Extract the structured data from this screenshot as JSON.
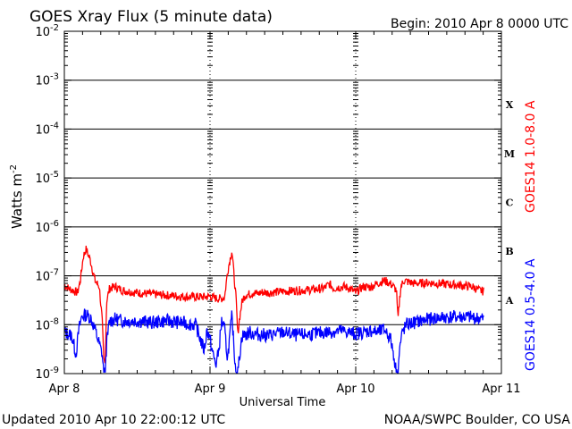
{
  "chart_data": {
    "type": "line",
    "title": "GOES Xray Flux (5 minute data)",
    "begin_label": "Begin:  2010 Apr 8 0000 UTC",
    "updated_label": "Updated 2010 Apr 10 22:00:12 UTC",
    "credit_label": "NOAA/SWPC Boulder, CO USA",
    "xlabel": "Universal Time",
    "ylabel_main": "Watts m",
    "ylabel_sup": "-2",
    "x_unit": "days since Apr 8 0000 UTC",
    "xlim": [
      0,
      3
    ],
    "x_ticks": [
      {
        "x": 0,
        "label": "Apr 8"
      },
      {
        "x": 1,
        "label": "Apr 9"
      },
      {
        "x": 2,
        "label": "Apr 10"
      },
      {
        "x": 3,
        "label": "Apr 11"
      }
    ],
    "y_scale": "log",
    "ylim": [
      1e-09,
      0.01
    ],
    "y_ticks": [
      {
        "exp": -9,
        "base": "10",
        "sup": "-9"
      },
      {
        "exp": -8,
        "base": "10",
        "sup": "-8"
      },
      {
        "exp": -7,
        "base": "10",
        "sup": "-7"
      },
      {
        "exp": -6,
        "base": "10",
        "sup": "-6"
      },
      {
        "exp": -5,
        "base": "10",
        "sup": "-5"
      },
      {
        "exp": -4,
        "base": "10",
        "sup": "-4"
      },
      {
        "exp": -3,
        "base": "10",
        "sup": "-3"
      },
      {
        "exp": -2,
        "base": "10",
        "sup": "-2"
      }
    ],
    "flare_classes": [
      {
        "label": "A",
        "exp": -8
      },
      {
        "label": "B",
        "exp": -7
      },
      {
        "label": "C",
        "exp": -6
      },
      {
        "label": "M",
        "exp": -5
      },
      {
        "label": "X",
        "exp": -4
      }
    ],
    "series": [
      {
        "name": "GOES14 1.0-8.0 A",
        "color": "#ff0000",
        "x": [
          0.0,
          0.03,
          0.06,
          0.09,
          0.11,
          0.13,
          0.15,
          0.18,
          0.21,
          0.24,
          0.26,
          0.27,
          0.28,
          0.29,
          0.31,
          0.35,
          0.4,
          0.5,
          0.6,
          0.7,
          0.8,
          0.9,
          0.97,
          1.0,
          1.03,
          1.07,
          1.1,
          1.12,
          1.15,
          1.18,
          1.19,
          1.2,
          1.22,
          1.24,
          1.27,
          1.3,
          1.33,
          1.36,
          1.4,
          1.5,
          1.6,
          1.7,
          1.78,
          1.82,
          1.85,
          1.88,
          1.92,
          1.96,
          2.0,
          2.05,
          2.1,
          2.15,
          2.2,
          2.25,
          2.28,
          2.29,
          2.3,
          2.31,
          2.33,
          2.36,
          2.4,
          2.5,
          2.6,
          2.7,
          2.8,
          2.85,
          2.88
        ],
        "y": [
          6.5e-08,
          5.5e-08,
          5e-08,
          4.5e-08,
          8e-08,
          2.5e-07,
          3.5e-07,
          2e-07,
          8e-08,
          6e-08,
          1.2e-08,
          2e-09,
          1.5e-09,
          3e-08,
          5.5e-08,
          6e-08,
          5e-08,
          4.5e-08,
          4.2e-08,
          4e-08,
          3.8e-08,
          3.7e-08,
          3.7e-08,
          3.8e-08,
          3.5e-08,
          3.4e-08,
          3.6e-08,
          1.2e-07,
          3.3e-07,
          3e-08,
          6e-09,
          1.2e-08,
          3e-08,
          4e-08,
          4.2e-08,
          4.5e-08,
          4.3e-08,
          4.6e-08,
          4.5e-08,
          4.8e-08,
          5e-08,
          5.2e-08,
          5.5e-08,
          6.8e-08,
          5.5e-08,
          5.8e-08,
          6e-08,
          5.5e-08,
          4.5e-08,
          6e-08,
          5.8e-08,
          7e-08,
          8e-08,
          6.5e-08,
          5e-08,
          1.2e-08,
          3e-08,
          6e-08,
          8e-08,
          7.5e-08,
          7e-08,
          7.2e-08,
          6.8e-08,
          6.5e-08,
          6e-08,
          5e-08,
          4.8e-08
        ],
        "noise": 0.18,
        "seed": 7
      },
      {
        "name": "GOES14 0.5-4.0 A",
        "color": "#0000ff",
        "x": [
          0.0,
          0.05,
          0.08,
          0.1,
          0.12,
          0.15,
          0.18,
          0.21,
          0.24,
          0.26,
          0.27,
          0.28,
          0.29,
          0.31,
          0.35,
          0.4,
          0.5,
          0.6,
          0.7,
          0.8,
          0.9,
          0.96,
          0.98,
          1.0,
          1.02,
          1.04,
          1.06,
          1.08,
          1.1,
          1.12,
          1.15,
          1.17,
          1.18,
          1.19,
          1.2,
          1.22,
          1.24,
          1.27,
          1.3,
          1.4,
          1.5,
          1.6,
          1.7,
          1.8,
          1.9,
          2.0,
          2.05,
          2.1,
          2.15,
          2.2,
          2.24,
          2.26,
          2.28,
          2.29,
          2.3,
          2.32,
          2.35,
          2.4,
          2.5,
          2.6,
          2.7,
          2.8,
          2.88
        ],
        "y": [
          7e-09,
          6e-09,
          2.5e-09,
          8e-09,
          1.5e-08,
          1.6e-08,
          1.4e-08,
          8e-09,
          4e-09,
          2.5e-09,
          1e-09,
          1e-09,
          4e-09,
          1.2e-08,
          1.3e-08,
          1.2e-08,
          1.2e-08,
          1.1e-08,
          1.2e-08,
          1.1e-08,
          1e-08,
          3e-09,
          8e-09,
          5e-09,
          2.5e-09,
          1.5e-09,
          3e-09,
          1.2e-08,
          8e-09,
          2e-09,
          1.5e-08,
          2e-09,
          1e-09,
          1e-09,
          2e-09,
          6e-09,
          6e-09,
          7e-09,
          6.5e-09,
          6e-09,
          7e-09,
          6e-09,
          6.5e-09,
          7e-09,
          7.5e-09,
          6.5e-09,
          7e-09,
          7.5e-09,
          7e-09,
          8e-09,
          5e-09,
          2.5e-09,
          1e-09,
          1e-09,
          3e-09,
          7e-09,
          1e-08,
          1.1e-08,
          1.3e-08,
          1.4e-08,
          1.45e-08,
          1.4e-08,
          1.3e-08
        ],
        "noise": 0.28,
        "seed": 13
      }
    ],
    "grid": "horizontal decades from 1e-7 to 1e-3; dashed day markers",
    "legend": "right side, vertical"
  }
}
